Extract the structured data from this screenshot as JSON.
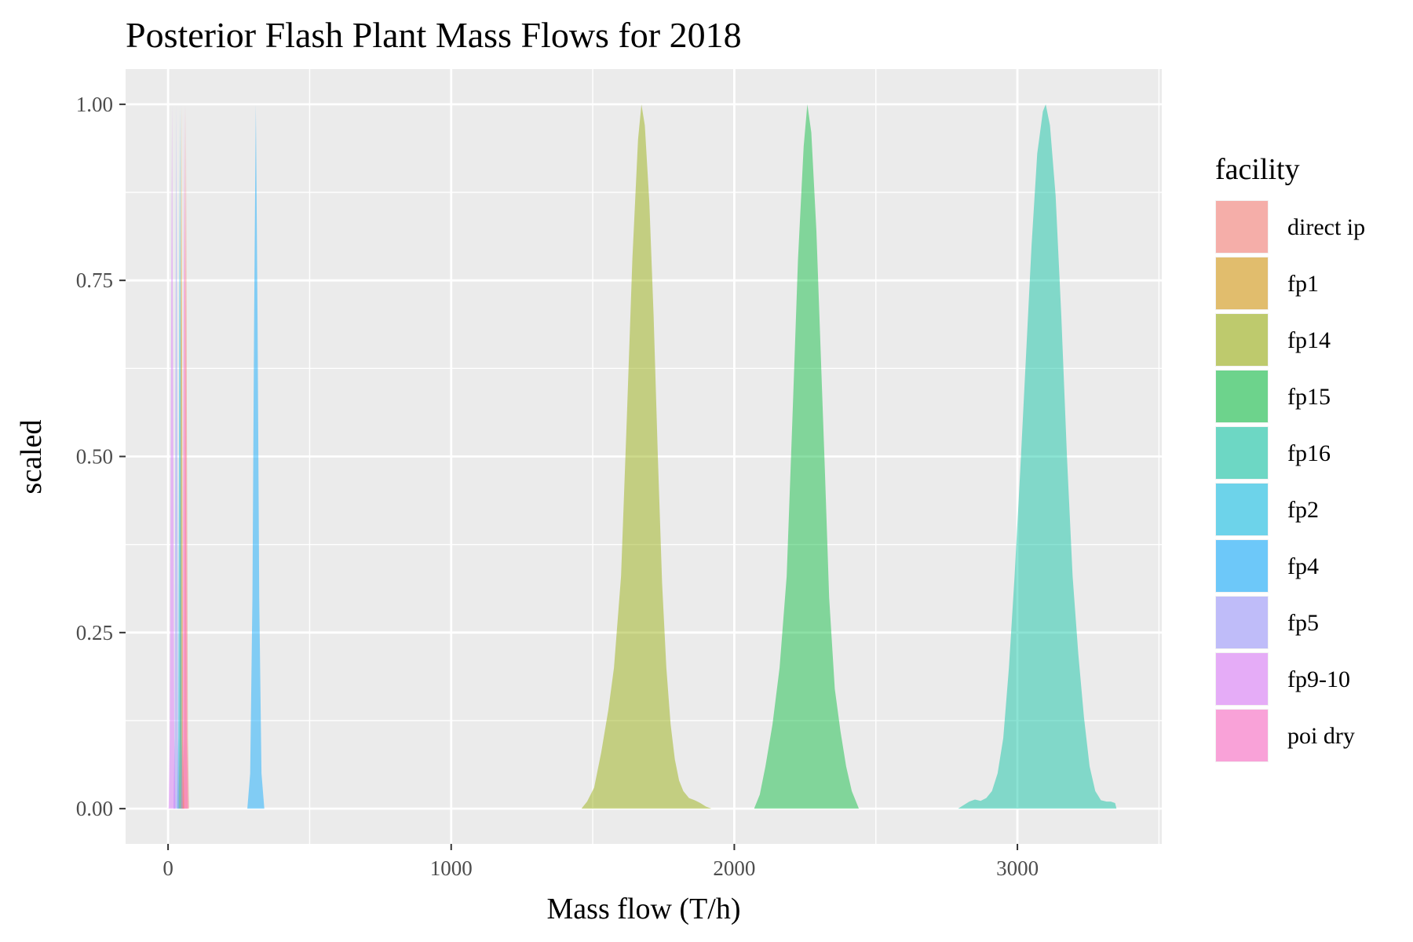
{
  "chart_data": {
    "type": "area",
    "title": "Posterior Flash Plant Mass Flows for 2018",
    "xlabel": "Mass flow (T/h)",
    "ylabel": "scaled",
    "xlim": [
      -150,
      3510
    ],
    "ylim": [
      -0.05,
      1.05
    ],
    "x_ticks": [
      0,
      1000,
      2000,
      3000
    ],
    "x_tick_labels": [
      "0",
      "1000",
      "2000",
      "3000"
    ],
    "y_ticks": [
      0,
      0.25,
      0.5,
      0.75,
      1
    ],
    "y_tick_labels": [
      "0.00",
      "0.25",
      "0.50",
      "0.75",
      "1.00"
    ],
    "grid": true,
    "legend": {
      "title": "facility",
      "position": "right"
    },
    "series": [
      {
        "name": "direct ip",
        "color": "#F8766D",
        "points": [
          [
            52,
            0
          ],
          [
            56,
            0.1
          ],
          [
            60,
            0.6
          ],
          [
            63,
            1
          ],
          [
            66,
            0.6
          ],
          [
            70,
            0.1
          ],
          [
            74,
            0
          ]
        ]
      },
      {
        "name": "fp1",
        "color": "#D39200",
        "points": [
          [
            37,
            0
          ],
          [
            41,
            0.1
          ],
          [
            44,
            0.6
          ],
          [
            47,
            1
          ],
          [
            50,
            0.6
          ],
          [
            53,
            0.1
          ],
          [
            57,
            0
          ]
        ]
      },
      {
        "name": "fp14",
        "color": "#93AA00",
        "points": [
          [
            1460,
            0
          ],
          [
            1480,
            0.01
          ],
          [
            1505,
            0.03
          ],
          [
            1530,
            0.08
          ],
          [
            1555,
            0.14
          ],
          [
            1575,
            0.2
          ],
          [
            1600,
            0.33
          ],
          [
            1620,
            0.55
          ],
          [
            1640,
            0.78
          ],
          [
            1660,
            0.95
          ],
          [
            1672,
            1
          ],
          [
            1684,
            0.97
          ],
          [
            1700,
            0.86
          ],
          [
            1715,
            0.7
          ],
          [
            1730,
            0.5
          ],
          [
            1745,
            0.32
          ],
          [
            1760,
            0.2
          ],
          [
            1775,
            0.12
          ],
          [
            1790,
            0.07
          ],
          [
            1805,
            0.04
          ],
          [
            1820,
            0.025
          ],
          [
            1840,
            0.015
          ],
          [
            1860,
            0.012
          ],
          [
            1880,
            0.008
          ],
          [
            1900,
            0.003
          ],
          [
            1920,
            0
          ]
        ]
      },
      {
        "name": "fp15",
        "color": "#00BA38",
        "points": [
          [
            2070,
            0
          ],
          [
            2090,
            0.02
          ],
          [
            2110,
            0.06
          ],
          [
            2135,
            0.12
          ],
          [
            2160,
            0.2
          ],
          [
            2185,
            0.33
          ],
          [
            2205,
            0.55
          ],
          [
            2225,
            0.78
          ],
          [
            2245,
            0.94
          ],
          [
            2258,
            1
          ],
          [
            2272,
            0.96
          ],
          [
            2290,
            0.82
          ],
          [
            2305,
            0.65
          ],
          [
            2320,
            0.48
          ],
          [
            2335,
            0.3
          ],
          [
            2355,
            0.17
          ],
          [
            2375,
            0.11
          ],
          [
            2395,
            0.06
          ],
          [
            2415,
            0.025
          ],
          [
            2440,
            0
          ]
        ]
      },
      {
        "name": "fp16",
        "color": "#00C19F",
        "points": [
          [
            2790,
            0
          ],
          [
            2810,
            0.005
          ],
          [
            2830,
            0.01
          ],
          [
            2850,
            0.013
          ],
          [
            2870,
            0.011
          ],
          [
            2890,
            0.015
          ],
          [
            2910,
            0.025
          ],
          [
            2930,
            0.05
          ],
          [
            2950,
            0.1
          ],
          [
            2970,
            0.2
          ],
          [
            2990,
            0.33
          ],
          [
            3010,
            0.48
          ],
          [
            3030,
            0.64
          ],
          [
            3050,
            0.8
          ],
          [
            3070,
            0.93
          ],
          [
            3090,
            0.99
          ],
          [
            3100,
            1
          ],
          [
            3115,
            0.97
          ],
          [
            3135,
            0.87
          ],
          [
            3155,
            0.7
          ],
          [
            3175,
            0.5
          ],
          [
            3195,
            0.33
          ],
          [
            3215,
            0.22
          ],
          [
            3235,
            0.13
          ],
          [
            3255,
            0.06
          ],
          [
            3275,
            0.025
          ],
          [
            3295,
            0.012
          ],
          [
            3315,
            0.01
          ],
          [
            3330,
            0.01
          ],
          [
            3345,
            0.008
          ],
          [
            3350,
            0
          ]
        ]
      },
      {
        "name": "fp2",
        "color": "#00B9E3",
        "points": [
          [
            32,
            0
          ],
          [
            36,
            0.1
          ],
          [
            39,
            0.6
          ],
          [
            42,
            1
          ],
          [
            45,
            0.6
          ],
          [
            48,
            0.1
          ],
          [
            52,
            0
          ]
        ]
      },
      {
        "name": "fp4",
        "color": "#00A6FF",
        "points": [
          [
            280,
            0
          ],
          [
            290,
            0.05
          ],
          [
            298,
            0.3
          ],
          [
            304,
            0.7
          ],
          [
            310,
            1
          ],
          [
            316,
            0.7
          ],
          [
            322,
            0.3
          ],
          [
            330,
            0.05
          ],
          [
            340,
            0
          ]
        ]
      },
      {
        "name": "fp5",
        "color": "#9590FF",
        "points": [
          [
            19,
            0
          ],
          [
            23,
            0.1
          ],
          [
            26,
            0.6
          ],
          [
            29,
            1
          ],
          [
            32,
            0.6
          ],
          [
            35,
            0.1
          ],
          [
            39,
            0
          ]
        ]
      },
      {
        "name": "fp9-10",
        "color": "#DB72FB",
        "points": [
          [
            2,
            0
          ],
          [
            6,
            0.1
          ],
          [
            10,
            0.6
          ],
          [
            14,
            1
          ],
          [
            18,
            0.6
          ],
          [
            22,
            0.1
          ],
          [
            26,
            0
          ]
        ]
      },
      {
        "name": "poi dry",
        "color": "#FF61C3",
        "points": [
          [
            46,
            0
          ],
          [
            50,
            0.1
          ],
          [
            54,
            0.6
          ],
          [
            58,
            1
          ],
          [
            62,
            0.6
          ],
          [
            66,
            0.1
          ],
          [
            70,
            0
          ]
        ]
      }
    ]
  }
}
